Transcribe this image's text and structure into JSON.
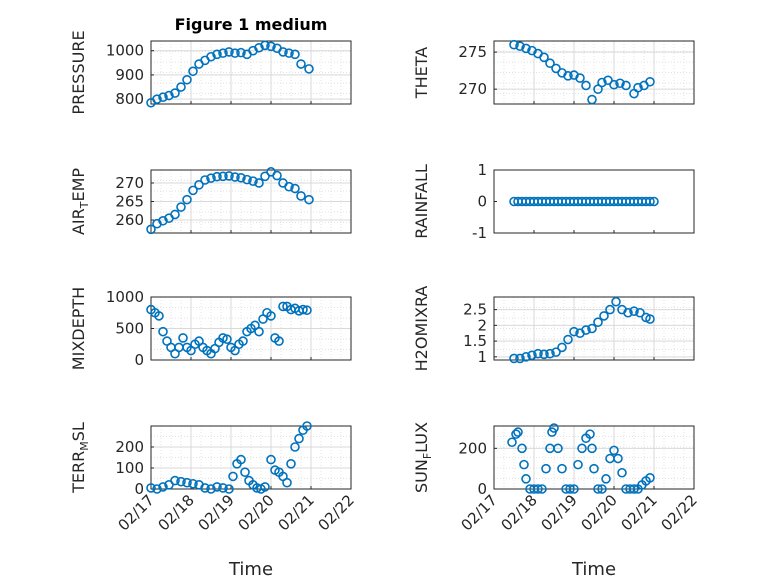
{
  "figure": {
    "title": "Figure 1 medium",
    "xlabel": "Time"
  },
  "style": {
    "marker_color": "#0072BD",
    "grid_color": "#d9d9d9",
    "axis_color": "#262626"
  },
  "chart_data": [
    {
      "type": "scatter",
      "ylabel": "PRESSURE",
      "ylabel_parts": [
        [
          "PRESSURE"
        ]
      ],
      "ylim": [
        780,
        1040
      ],
      "yticks": [
        800,
        900,
        1000
      ],
      "ytick_labels": [
        "800",
        "900",
        "1000"
      ],
      "xlim": [
        0,
        5
      ],
      "grid": true,
      "x": [
        0.0,
        0.15,
        0.3,
        0.45,
        0.6,
        0.75,
        0.9,
        1.05,
        1.2,
        1.35,
        1.5,
        1.65,
        1.8,
        1.95,
        2.1,
        2.25,
        2.4,
        2.55,
        2.7,
        2.85,
        3.0,
        3.15,
        3.3,
        3.45,
        3.6,
        3.75,
        3.95
      ],
      "y": [
        785,
        800,
        808,
        815,
        825,
        850,
        880,
        915,
        945,
        960,
        975,
        985,
        990,
        995,
        990,
        992,
        985,
        1000,
        1012,
        1022,
        1018,
        1010,
        995,
        990,
        985,
        945,
        925
      ]
    },
    {
      "type": "scatter",
      "ylabel": "THETA",
      "ylabel_parts": [
        [
          "THETA"
        ]
      ],
      "ylim": [
        268,
        276.5
      ],
      "yticks": [
        270,
        275
      ],
      "ytick_labels": [
        "270",
        "275"
      ],
      "xlim": [
        0,
        5
      ],
      "grid": true,
      "x": [
        0.5,
        0.65,
        0.8,
        0.95,
        1.1,
        1.25,
        1.4,
        1.55,
        1.7,
        1.85,
        2.0,
        2.15,
        2.3,
        2.45,
        2.6,
        2.7,
        2.85,
        3.0,
        3.15,
        3.3,
        3.5,
        3.6,
        3.75,
        3.9
      ],
      "y": [
        276,
        275.8,
        275.5,
        275.2,
        274.8,
        274.3,
        273.5,
        272.8,
        272.2,
        271.8,
        271.9,
        271.5,
        270.5,
        268.6,
        270,
        270.9,
        271.2,
        270.6,
        270.8,
        270.5,
        269.4,
        270.2,
        270.5,
        271
      ]
    },
    {
      "type": "scatter",
      "ylabel": "AIR_TEMP",
      "ylabel_parts": [
        [
          "AIR"
        ],
        [
          "T",
          "sub"
        ],
        [
          "EMP"
        ]
      ],
      "ylim": [
        256.5,
        273.5
      ],
      "yticks": [
        260,
        265,
        270
      ],
      "ytick_labels": [
        "260",
        "265",
        "270"
      ],
      "xlim": [
        0,
        5
      ],
      "grid": true,
      "x": [
        0.0,
        0.15,
        0.3,
        0.45,
        0.6,
        0.75,
        0.9,
        1.05,
        1.2,
        1.35,
        1.5,
        1.65,
        1.8,
        1.95,
        2.1,
        2.25,
        2.4,
        2.55,
        2.7,
        2.85,
        3.0,
        3.15,
        3.3,
        3.45,
        3.6,
        3.75,
        3.95
      ],
      "y": [
        257.5,
        259,
        259.8,
        260.5,
        261.5,
        263.5,
        265.5,
        268,
        269.5,
        270.8,
        271.3,
        271.7,
        271.8,
        271.9,
        271.6,
        271.4,
        270.9,
        270.5,
        270,
        271.8,
        273,
        272,
        270,
        269,
        268.5,
        266.5,
        265.5
      ]
    },
    {
      "type": "scatter",
      "ylabel": "RAINFALL",
      "ylabel_parts": [
        [
          "RAINFALL"
        ]
      ],
      "ylim": [
        -1,
        1
      ],
      "yticks": [
        -1,
        0,
        1
      ],
      "ytick_labels": [
        "-1",
        "0",
        "1"
      ],
      "xlim": [
        0,
        5
      ],
      "grid": false,
      "x": [
        0.5,
        0.6,
        0.7,
        0.8,
        0.9,
        1.0,
        1.1,
        1.2,
        1.3,
        1.4,
        1.5,
        1.6,
        1.7,
        1.8,
        1.9,
        2.0,
        2.1,
        2.2,
        2.3,
        2.4,
        2.5,
        2.6,
        2.7,
        2.8,
        2.9,
        3.0,
        3.1,
        3.2,
        3.3,
        3.4,
        3.5,
        3.6,
        3.7,
        3.8,
        3.9,
        4.0
      ],
      "y": [
        0,
        0,
        0,
        0,
        0,
        0,
        0,
        0,
        0,
        0,
        0,
        0,
        0,
        0,
        0,
        0,
        0,
        0,
        0,
        0,
        0,
        0,
        0,
        0,
        0,
        0,
        0,
        0,
        0,
        0,
        0,
        0,
        0,
        0,
        0,
        0
      ]
    },
    {
      "type": "scatter",
      "ylabel": "MIXDEPTH",
      "ylabel_parts": [
        [
          "MIXDEPTH"
        ]
      ],
      "ylim": [
        0,
        1000
      ],
      "yticks": [
        0,
        500,
        1000
      ],
      "ytick_labels": [
        "0",
        "500",
        "1000"
      ],
      "xlim": [
        0,
        5
      ],
      "grid": true,
      "x": [
        0.0,
        0.1,
        0.2,
        0.3,
        0.4,
        0.5,
        0.6,
        0.7,
        0.8,
        0.9,
        1.0,
        1.1,
        1.2,
        1.3,
        1.4,
        1.5,
        1.6,
        1.7,
        1.8,
        1.9,
        2.0,
        2.1,
        2.2,
        2.3,
        2.4,
        2.5,
        2.6,
        2.7,
        2.8,
        2.9,
        3.0,
        3.1,
        3.2,
        3.3,
        3.4,
        3.5,
        3.6,
        3.7,
        3.8,
        3.9
      ],
      "y": [
        800,
        750,
        700,
        450,
        300,
        200,
        100,
        200,
        350,
        200,
        150,
        250,
        300,
        200,
        150,
        100,
        180,
        280,
        350,
        330,
        200,
        150,
        250,
        300,
        450,
        500,
        550,
        450,
        650,
        750,
        700,
        350,
        300,
        850,
        850,
        800,
        820,
        780,
        800,
        790
      ]
    },
    {
      "type": "scatter",
      "ylabel": "H2OMIXRA",
      "ylabel_parts": [
        [
          "H2OMIXRA"
        ]
      ],
      "ylim": [
        0.9,
        2.9
      ],
      "yticks": [
        1,
        1.5,
        2,
        2.5
      ],
      "ytick_labels": [
        "1",
        "1.5",
        "2",
        "2.5"
      ],
      "xlim": [
        0,
        5
      ],
      "grid": true,
      "x": [
        0.5,
        0.65,
        0.8,
        0.95,
        1.1,
        1.25,
        1.4,
        1.55,
        1.7,
        1.85,
        2.0,
        2.15,
        2.3,
        2.45,
        2.6,
        2.75,
        2.9,
        3.05,
        3.2,
        3.35,
        3.5,
        3.65,
        3.8,
        3.9
      ],
      "y": [
        0.95,
        0.95,
        1.0,
        1.05,
        1.1,
        1.08,
        1.1,
        1.15,
        1.3,
        1.55,
        1.8,
        1.75,
        1.85,
        1.9,
        2.1,
        2.3,
        2.5,
        2.75,
        2.5,
        2.4,
        2.45,
        2.4,
        2.25,
        2.2
      ]
    },
    {
      "type": "scatter",
      "ylabel": "TERR_MSL",
      "ylabel_parts": [
        [
          "TERR"
        ],
        [
          "M",
          "sub"
        ],
        [
          "SL"
        ]
      ],
      "ylim": [
        0,
        300
      ],
      "yticks": [
        0,
        100,
        200
      ],
      "ytick_labels": [
        "0",
        "100",
        "200"
      ],
      "xlim": [
        0,
        5
      ],
      "grid": true,
      "x": [
        0.0,
        0.15,
        0.3,
        0.45,
        0.6,
        0.75,
        0.9,
        1.05,
        1.2,
        1.35,
        1.5,
        1.65,
        1.8,
        1.95,
        2.05,
        2.15,
        2.25,
        2.35,
        2.45,
        2.55,
        2.65,
        2.75,
        2.85,
        3.0,
        3.1,
        3.2,
        3.3,
        3.4,
        3.5,
        3.6,
        3.7,
        3.8,
        3.9
      ],
      "y": [
        5,
        0,
        10,
        20,
        40,
        35,
        30,
        25,
        20,
        5,
        0,
        10,
        5,
        0,
        60,
        120,
        140,
        80,
        40,
        20,
        5,
        0,
        10,
        140,
        90,
        80,
        60,
        30,
        120,
        200,
        240,
        280,
        300
      ]
    },
    {
      "type": "scatter",
      "ylabel": "SUN_FLUX",
      "ylabel_parts": [
        [
          "SUN"
        ],
        [
          "F",
          "sub"
        ],
        [
          "LUX"
        ]
      ],
      "ylim": [
        0,
        310
      ],
      "yticks": [
        0,
        200
      ],
      "ytick_labels": [
        "0",
        "200"
      ],
      "xlim": [
        0,
        5
      ],
      "grid": true,
      "x": [
        0.45,
        0.55,
        0.6,
        0.7,
        0.75,
        0.8,
        0.9,
        1.0,
        1.1,
        1.2,
        1.3,
        1.4,
        1.45,
        1.5,
        1.6,
        1.7,
        1.8,
        1.9,
        2.0,
        2.1,
        2.2,
        2.3,
        2.4,
        2.45,
        2.5,
        2.6,
        2.7,
        2.8,
        2.9,
        3.0,
        3.1,
        3.2,
        3.3,
        3.4,
        3.5,
        3.6,
        3.7,
        3.8,
        3.9
      ],
      "y": [
        230,
        270,
        280,
        200,
        120,
        50,
        0,
        0,
        0,
        0,
        100,
        200,
        280,
        300,
        200,
        100,
        0,
        0,
        0,
        120,
        200,
        250,
        270,
        200,
        100,
        0,
        0,
        50,
        150,
        190,
        150,
        80,
        0,
        0,
        0,
        0,
        20,
        40,
        55
      ]
    }
  ],
  "xticks": [
    {
      "label": "02/17",
      "value": 0
    },
    {
      "label": "02/18",
      "value": 1
    },
    {
      "label": "02/19",
      "value": 2
    },
    {
      "label": "02/20",
      "value": 3
    },
    {
      "label": "02/21",
      "value": 4
    },
    {
      "label": "02/22",
      "value": 5
    }
  ]
}
